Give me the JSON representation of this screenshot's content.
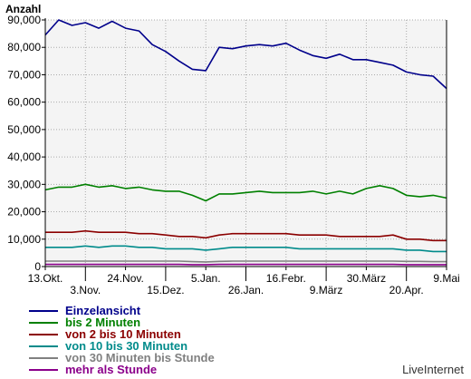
{
  "chart_data": {
    "type": "line",
    "title": "Anzahl",
    "ylim": [
      0,
      90000
    ],
    "yticks": [
      "0",
      "10,000",
      "20,000",
      "30,000",
      "40,000",
      "50,000",
      "60,000",
      "70,000",
      "80,000",
      "90,000"
    ],
    "ytick_values": [
      0,
      10000,
      20000,
      30000,
      40000,
      50000,
      60000,
      70000,
      80000,
      90000
    ],
    "x_tick_labels_upper": [
      "13.Okt.",
      "24.Nov.",
      "5.Jan.",
      "16.Febr.",
      "30.März",
      "9.Mai"
    ],
    "x_tick_labels_lower": [
      "3.Nov.",
      "15.Dez.",
      "26.Jan.",
      "9.März",
      "20.Apr."
    ],
    "grid": true,
    "legend_position": "bottom-left",
    "watermark": "LiveInternet",
    "series": [
      {
        "name": "Einzelansicht",
        "color": "#00008b",
        "values": [
          84500,
          90000,
          88000,
          89000,
          87000,
          89500,
          87000,
          86000,
          81000,
          78500,
          75000,
          72000,
          71500,
          80000,
          79500,
          80500,
          81000,
          80500,
          81500,
          79000,
          77000,
          76000,
          77500,
          75500,
          75500,
          74500,
          73500,
          71000,
          70000,
          69500,
          65000
        ]
      },
      {
        "name": "bis 2 Minuten",
        "color": "#008000",
        "values": [
          28000,
          29000,
          29000,
          30000,
          29000,
          29500,
          28500,
          29000,
          28000,
          27500,
          27500,
          26000,
          24000,
          26500,
          26500,
          27000,
          27500,
          27000,
          27000,
          27000,
          27500,
          26500,
          27500,
          26500,
          28500,
          29500,
          28500,
          26000,
          25500,
          26000,
          25000
        ]
      },
      {
        "name": "von 2 bis 10 Minuten",
        "color": "#8b0000",
        "values": [
          12500,
          12500,
          12500,
          13000,
          12500,
          12500,
          12500,
          12000,
          12000,
          11500,
          11000,
          11000,
          10500,
          11500,
          12000,
          12000,
          12000,
          12000,
          12000,
          11500,
          11500,
          11500,
          11000,
          11000,
          11000,
          11000,
          11500,
          10000,
          10000,
          9500,
          9500
        ]
      },
      {
        "name": "von 10 bis 30 Minuten",
        "color": "#008b8b",
        "values": [
          7000,
          7000,
          7000,
          7500,
          7000,
          7500,
          7500,
          7000,
          7000,
          6500,
          6500,
          6500,
          6000,
          6500,
          7000,
          7000,
          7000,
          7000,
          7000,
          6500,
          6500,
          6500,
          6500,
          6500,
          6500,
          6500,
          6500,
          6000,
          6000,
          5500,
          5500
        ]
      },
      {
        "name": "von 30 Minuten bis Stunde",
        "color": "#808080",
        "values": [
          2000,
          2000,
          2000,
          2000,
          2000,
          2000,
          2000,
          2000,
          2000,
          2000,
          2000,
          1800,
          1700,
          1900,
          2000,
          2000,
          2000,
          2000,
          2000,
          2000,
          2000,
          2000,
          2000,
          2000,
          2000,
          2000,
          2000,
          1900,
          1900,
          1800,
          1800
        ]
      },
      {
        "name": "mehr als Stunde",
        "color": "#8b008b",
        "values": [
          800,
          800,
          800,
          800,
          800,
          800,
          800,
          800,
          800,
          800,
          800,
          700,
          700,
          800,
          800,
          800,
          800,
          800,
          800,
          800,
          800,
          800,
          800,
          800,
          800,
          800,
          800,
          700,
          700,
          700,
          700
        ]
      }
    ]
  }
}
